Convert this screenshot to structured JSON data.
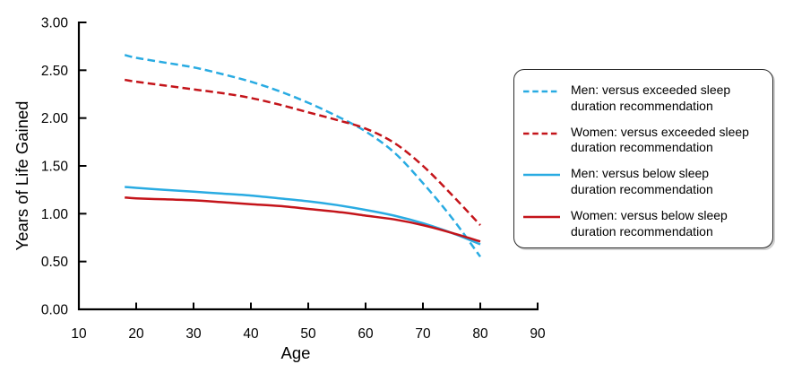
{
  "chart_data": {
    "type": "line",
    "title": "",
    "xlabel": "Age",
    "ylabel": "Years of Life Gained",
    "xlim": [
      10,
      90
    ],
    "ylim": [
      0,
      3
    ],
    "x_ticks": [
      10,
      20,
      30,
      40,
      50,
      60,
      70,
      80,
      90
    ],
    "y_ticks": [
      0,
      0.5,
      1,
      1.5,
      2,
      2.5,
      3
    ],
    "y_tick_labels": [
      "0.00",
      "0.50",
      "1.00",
      "1.50",
      "2.00",
      "2.50",
      "3.00"
    ],
    "grid": false,
    "legend_position": "right",
    "axis_color": "#000000",
    "series": [
      {
        "id": "men-exceeded",
        "name": "Men: versus exceeded sleep duration recommendation",
        "color": "#29ABE2",
        "line_style": "dashed",
        "x": [
          18,
          20,
          25,
          30,
          35,
          40,
          45,
          50,
          55,
          60,
          65,
          70,
          75,
          80
        ],
        "y": [
          2.66,
          2.63,
          2.58,
          2.53,
          2.46,
          2.38,
          2.28,
          2.16,
          2.02,
          1.86,
          1.64,
          1.32,
          0.96,
          0.55
        ]
      },
      {
        "id": "women-exceeded",
        "name": "Women: versus exceeded sleep duration recommendation",
        "color": "#C4141A",
        "line_style": "dashed",
        "x": [
          18,
          20,
          25,
          30,
          35,
          40,
          45,
          50,
          55,
          60,
          65,
          70,
          75,
          80
        ],
        "y": [
          2.4,
          2.38,
          2.34,
          2.3,
          2.26,
          2.21,
          2.14,
          2.06,
          1.98,
          1.89,
          1.74,
          1.5,
          1.2,
          0.88
        ]
      },
      {
        "id": "men-below",
        "name": "Men: versus below sleep duration recommendation",
        "color": "#29ABE2",
        "line_style": "solid",
        "x": [
          18,
          20,
          25,
          30,
          35,
          40,
          45,
          50,
          55,
          60,
          65,
          70,
          75,
          80
        ],
        "y": [
          1.28,
          1.27,
          1.25,
          1.23,
          1.21,
          1.19,
          1.16,
          1.13,
          1.09,
          1.04,
          0.98,
          0.9,
          0.8,
          0.68
        ]
      },
      {
        "id": "women-below",
        "name": "Women: versus below sleep duration recommendation",
        "color": "#C4141A",
        "line_style": "solid",
        "x": [
          18,
          20,
          25,
          30,
          35,
          40,
          45,
          50,
          55,
          60,
          65,
          70,
          75,
          80
        ],
        "y": [
          1.17,
          1.16,
          1.15,
          1.14,
          1.12,
          1.1,
          1.08,
          1.05,
          1.02,
          0.98,
          0.94,
          0.88,
          0.8,
          0.71
        ]
      }
    ]
  },
  "legend": {
    "entries": [
      {
        "lines": [
          "Men: versus exceeded sleep",
          "duration recommendation"
        ],
        "color": "#29ABE2",
        "style": "dashed"
      },
      {
        "lines": [
          "Women: versus exceeded sleep",
          "duration recommendation"
        ],
        "color": "#C4141A",
        "style": "dashed"
      },
      {
        "lines": [
          "Men: versus below sleep",
          "duration recommendation"
        ],
        "color": "#29ABE2",
        "style": "solid"
      },
      {
        "lines": [
          "Women: versus below sleep",
          "duration recommendation"
        ],
        "color": "#C4141A",
        "style": "solid"
      }
    ]
  }
}
